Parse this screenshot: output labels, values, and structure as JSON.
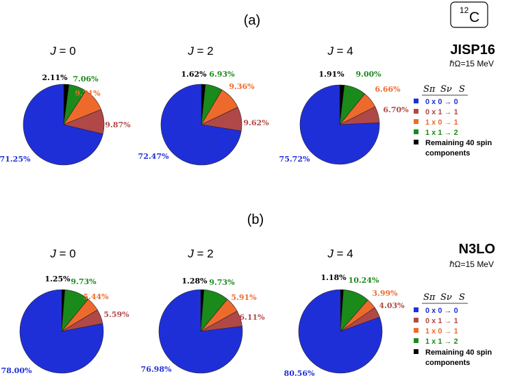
{
  "colors": {
    "ss00": "#1f2fd8",
    "ss01": "#b04848",
    "ss10": "#ee6a2c",
    "ss11": "#1a8a1a",
    "rem": "#000000"
  },
  "nucleus_box": {
    "mass": "12",
    "element": "C"
  },
  "chart_data": [
    {
      "panel": "(a)",
      "interaction": "JISP16",
      "hbar_omega": "ℏΩ=15 MeV",
      "legend": {
        "header_pi": "Sπ",
        "header_nu": "Sν",
        "header_s": "S",
        "entries": [
          "0 x 0 → 0",
          "0 x 1 → 1",
          "1 x 0 → 1",
          "1 x 1 → 2"
        ],
        "remaining_line1": "Remaining 40 spin",
        "remaining_line2": "components"
      },
      "pies": [
        {
          "type": "pie",
          "title": "J = 0",
          "j": "0",
          "slices": [
            {
              "key": "rem",
              "value": 2.11,
              "label": "2.11%"
            },
            {
              "key": "ss11",
              "value": 7.06,
              "label": "7.06%"
            },
            {
              "key": "ss10",
              "value": 9.71,
              "label": "9.71%"
            },
            {
              "key": "ss01",
              "value": 9.87,
              "label": "9.87%"
            },
            {
              "key": "ss00",
              "value": 71.25,
              "label": "71.25%"
            }
          ]
        },
        {
          "type": "pie",
          "title": "J = 2",
          "j": "2",
          "slices": [
            {
              "key": "rem",
              "value": 1.62,
              "label": "1.62%"
            },
            {
              "key": "ss11",
              "value": 6.93,
              "label": "6.93%"
            },
            {
              "key": "ss10",
              "value": 9.36,
              "label": "9.36%"
            },
            {
              "key": "ss01",
              "value": 9.62,
              "label": "9.62%"
            },
            {
              "key": "ss00",
              "value": 72.47,
              "label": "72.47%"
            }
          ]
        },
        {
          "type": "pie",
          "title": "J = 4",
          "j": "4",
          "slices": [
            {
              "key": "rem",
              "value": 1.91,
              "label": "1.91%"
            },
            {
              "key": "ss11",
              "value": 9.0,
              "label": "9.00%"
            },
            {
              "key": "ss10",
              "value": 6.66,
              "label": "6.66%"
            },
            {
              "key": "ss01",
              "value": 6.7,
              "label": "6.70%"
            },
            {
              "key": "ss00",
              "value": 75.72,
              "label": "75.72%"
            }
          ]
        }
      ]
    },
    {
      "panel": "(b)",
      "interaction": "N3LO",
      "hbar_omega": "ℏΩ=15 MeV",
      "legend": {
        "header_pi": "Sπ",
        "header_nu": "Sν",
        "header_s": "S",
        "entries": [
          "0 x 0 → 0",
          "0 x 1 → 1",
          "1 x 0 → 1",
          "1 x 1 → 2"
        ],
        "remaining_line1": "Remaining 40 spin",
        "remaining_line2": "components"
      },
      "pies": [
        {
          "type": "pie",
          "title": "J = 0",
          "j": "0",
          "slices": [
            {
              "key": "rem",
              "value": 1.25,
              "label": "1.25%"
            },
            {
              "key": "ss11",
              "value": 9.73,
              "label": "9.73%"
            },
            {
              "key": "ss10",
              "value": 5.44,
              "label": "5.44%"
            },
            {
              "key": "ss01",
              "value": 5.59,
              "label": "5.59%"
            },
            {
              "key": "ss00",
              "value": 78.0,
              "label": "78.00%"
            }
          ]
        },
        {
          "type": "pie",
          "title": "J = 2",
          "j": "2",
          "slices": [
            {
              "key": "rem",
              "value": 1.28,
              "label": "1.28%"
            },
            {
              "key": "ss11",
              "value": 9.73,
              "label": "9.73%"
            },
            {
              "key": "ss10",
              "value": 5.91,
              "label": "5.91%"
            },
            {
              "key": "ss01",
              "value": 6.11,
              "label": "6.11%"
            },
            {
              "key": "ss00",
              "value": 76.98,
              "label": "76.98%"
            }
          ]
        },
        {
          "type": "pie",
          "title": "J = 4",
          "j": "4",
          "slices": [
            {
              "key": "rem",
              "value": 1.18,
              "label": "1.18%"
            },
            {
              "key": "ss11",
              "value": 10.24,
              "label": "10.24%"
            },
            {
              "key": "ss10",
              "value": 3.99,
              "label": "3.99%"
            },
            {
              "key": "ss01",
              "value": 4.03,
              "label": "4.03%"
            },
            {
              "key": "ss00",
              "value": 80.56,
              "label": "80.56%"
            }
          ]
        }
      ]
    }
  ]
}
